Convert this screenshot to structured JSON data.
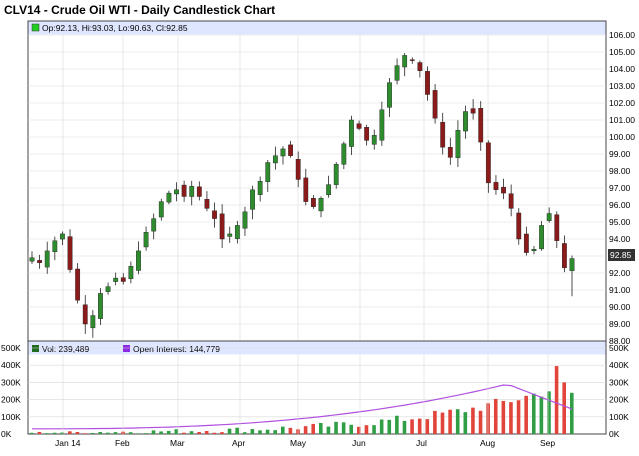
{
  "title": "CLV14 - Crude Oil WTI - Daily Candlestick Chart",
  "ohlc_legend": "Op:92.13, Hi:93.03, Lo:90.63, Cl:92.85",
  "vol_legend": "Vol: 239,489",
  "oi_legend": "Open Interest: 144,779",
  "last_price": "92.85",
  "colors": {
    "up": "#2e8b2e",
    "down": "#8b1a1a",
    "vol_up": "#2f9e44",
    "vol_down": "#e0443a",
    "oi": "#b04fe0",
    "panel_header": "#dfe6ff"
  },
  "chart_data": {
    "type": "candlestick",
    "ylim": [
      88,
      106
    ],
    "yticks": [
      "88.00",
      "89.00",
      "90.00",
      "91.00",
      "92.00",
      "93.00",
      "94.00",
      "95.00",
      "96.00",
      "97.00",
      "98.00",
      "99.00",
      "100.00",
      "101.00",
      "102.00",
      "103.00",
      "104.00",
      "105.00",
      "106.00"
    ],
    "months": [
      "Jan 14",
      "Feb",
      "Mar",
      "Apr",
      "May",
      "Jun",
      "Jul",
      "Aug",
      "Sep"
    ],
    "close_series": [
      92.9,
      92.6,
      93.3,
      93.9,
      94.3,
      92.2,
      90.4,
      89.0,
      89.5,
      90.8,
      91.2,
      91.7,
      91.5,
      92.4,
      93.3,
      94.4,
      95.2,
      96.2,
      96.7,
      96.9,
      96.5,
      97.1,
      96.5,
      95.8,
      95.2,
      94.0,
      94.3,
      94.8,
      95.6,
      96.9,
      97.4,
      98.5,
      98.9,
      99.3,
      98.9,
      97.5,
      96.2,
      95.9,
      96.4,
      97.2,
      98.4,
      99.6,
      101.0,
      100.5,
      99.8,
      100.1,
      101.6,
      103.2,
      104.2,
      104.8,
      104.5,
      103.9,
      102.5,
      101.1,
      99.4,
      98.8,
      100.4,
      101.5,
      101.4,
      99.7,
      97.3,
      96.9,
      96.7,
      95.8,
      94.0,
      93.2,
      93.4,
      94.8,
      95.5,
      93.9,
      92.3,
      92.85
    ],
    "volume_axis": {
      "ylim": [
        0,
        500
      ],
      "ticks": [
        "0K",
        "100K",
        "200K",
        "300K",
        "400K",
        "500K"
      ]
    },
    "open_interest_end": 144779,
    "last_bar": {
      "open": 92.13,
      "high": 93.03,
      "low": 90.63,
      "close": 92.85,
      "volume": 239489
    }
  }
}
